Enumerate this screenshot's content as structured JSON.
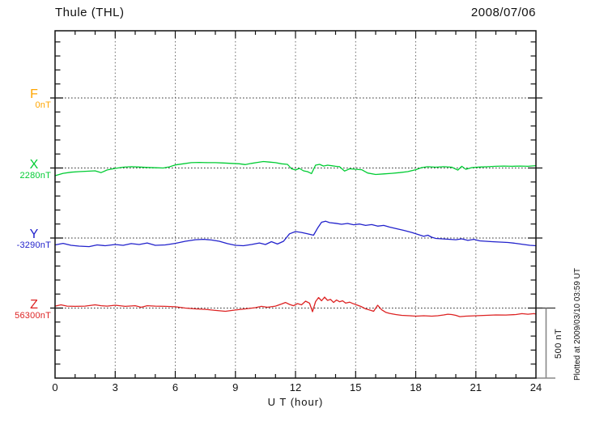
{
  "chart_data": {
    "type": "line",
    "title": "Thule (THL)",
    "date": "2008/07/06",
    "xlabel": "U T (hour)",
    "x_range": [
      0,
      24
    ],
    "x_ticks": [
      0,
      3,
      6,
      9,
      12,
      15,
      18,
      21,
      24
    ],
    "grid": "dotted vertical at 3h intervals, dotted horizontal at each channel baseline",
    "axis_color": "#111111",
    "scale_bar": {
      "label": "500 nT",
      "nT": 500
    },
    "watermark": "Plotted at 2009/03/10 03:59 UT",
    "note": "Magnetogram; each channel plotted as offset in nT from its baseline value; baseline spacing equals 500 nT",
    "series": [
      {
        "name": "F",
        "value_label": "0nT",
        "color": "#FFA500",
        "points": []
      },
      {
        "name": "X",
        "value_label": "2280nT",
        "color": "#00CC33",
        "points": [
          [
            0,
            -55
          ],
          [
            0.4,
            -38
          ],
          [
            0.8,
            -30
          ],
          [
            1.2,
            -26
          ],
          [
            1.6,
            -23
          ],
          [
            2,
            -20
          ],
          [
            2.3,
            -33
          ],
          [
            2.6,
            -14
          ],
          [
            3,
            -3
          ],
          [
            3.4,
            6
          ],
          [
            3.8,
            9
          ],
          [
            4.2,
            7
          ],
          [
            4.6,
            4
          ],
          [
            5,
            2
          ],
          [
            5.4,
            0
          ],
          [
            5.7,
            8
          ],
          [
            6,
            22
          ],
          [
            6.4,
            30
          ],
          [
            6.8,
            38
          ],
          [
            7.2,
            40
          ],
          [
            7.6,
            38
          ],
          [
            8,
            38
          ],
          [
            8.4,
            36
          ],
          [
            8.8,
            33
          ],
          [
            9.2,
            30
          ],
          [
            9.5,
            24
          ],
          [
            9.8,
            33
          ],
          [
            10.1,
            40
          ],
          [
            10.4,
            46
          ],
          [
            10.7,
            42
          ],
          [
            11,
            38
          ],
          [
            11.3,
            30
          ],
          [
            11.6,
            26
          ],
          [
            11.8,
            -6
          ],
          [
            12,
            -14
          ],
          [
            12.2,
            -3
          ],
          [
            12.4,
            -20
          ],
          [
            12.6,
            -26
          ],
          [
            12.8,
            -40
          ],
          [
            13,
            20
          ],
          [
            13.2,
            26
          ],
          [
            13.4,
            14
          ],
          [
            13.6,
            20
          ],
          [
            13.8,
            16
          ],
          [
            14,
            12
          ],
          [
            14.2,
            9
          ],
          [
            14.45,
            -22
          ],
          [
            14.7,
            -6
          ],
          [
            15,
            -9
          ],
          [
            15.3,
            -12
          ],
          [
            15.6,
            -36
          ],
          [
            16,
            -46
          ],
          [
            16.4,
            -42
          ],
          [
            16.8,
            -38
          ],
          [
            17.2,
            -33
          ],
          [
            17.6,
            -26
          ],
          [
            18,
            -12
          ],
          [
            18.3,
            3
          ],
          [
            18.6,
            9
          ],
          [
            19,
            6
          ],
          [
            19.4,
            9
          ],
          [
            19.8,
            6
          ],
          [
            20.1,
            -15
          ],
          [
            20.3,
            12
          ],
          [
            20.5,
            -9
          ],
          [
            20.8,
            3
          ],
          [
            21.2,
            7
          ],
          [
            21.6,
            9
          ],
          [
            22,
            12
          ],
          [
            22.4,
            14
          ],
          [
            22.8,
            12
          ],
          [
            23.2,
            14
          ],
          [
            23.6,
            12
          ],
          [
            24,
            17
          ]
        ]
      },
      {
        "name": "Y",
        "value_label": "-3290nT",
        "color": "#2222CC",
        "points": [
          [
            0,
            -49
          ],
          [
            0.4,
            -38
          ],
          [
            0.8,
            -52
          ],
          [
            1.2,
            -58
          ],
          [
            1.7,
            -61
          ],
          [
            2.1,
            -49
          ],
          [
            2.5,
            -55
          ],
          [
            3,
            -46
          ],
          [
            3.4,
            -52
          ],
          [
            3.8,
            -40
          ],
          [
            4.2,
            -46
          ],
          [
            4.6,
            -35
          ],
          [
            5,
            -52
          ],
          [
            5.5,
            -49
          ],
          [
            6,
            -38
          ],
          [
            6.5,
            -23
          ],
          [
            7,
            -12
          ],
          [
            7.4,
            -9
          ],
          [
            7.8,
            -14
          ],
          [
            8.2,
            -23
          ],
          [
            8.6,
            -40
          ],
          [
            9,
            -52
          ],
          [
            9.4,
            -55
          ],
          [
            9.8,
            -46
          ],
          [
            10.2,
            -35
          ],
          [
            10.5,
            -46
          ],
          [
            10.8,
            -26
          ],
          [
            11.1,
            -43
          ],
          [
            11.4,
            -23
          ],
          [
            11.7,
            30
          ],
          [
            12,
            46
          ],
          [
            12.3,
            40
          ],
          [
            12.6,
            30
          ],
          [
            12.9,
            20
          ],
          [
            13.1,
            70
          ],
          [
            13.3,
            113
          ],
          [
            13.5,
            120
          ],
          [
            13.7,
            110
          ],
          [
            14,
            105
          ],
          [
            14.3,
            98
          ],
          [
            14.6,
            104
          ],
          [
            14.9,
            95
          ],
          [
            15.2,
            100
          ],
          [
            15.5,
            90
          ],
          [
            15.8,
            96
          ],
          [
            16.1,
            85
          ],
          [
            16.4,
            90
          ],
          [
            16.7,
            78
          ],
          [
            17,
            68
          ],
          [
            17.4,
            55
          ],
          [
            17.8,
            40
          ],
          [
            18.1,
            26
          ],
          [
            18.4,
            12
          ],
          [
            18.6,
            20
          ],
          [
            18.8,
            6
          ],
          [
            19,
            -3
          ],
          [
            19.3,
            -6
          ],
          [
            19.7,
            -9
          ],
          [
            20,
            -12
          ],
          [
            20.3,
            -6
          ],
          [
            20.6,
            -17
          ],
          [
            20.9,
            -9
          ],
          [
            21.2,
            -20
          ],
          [
            21.5,
            -23
          ],
          [
            21.8,
            -26
          ],
          [
            22.2,
            -29
          ],
          [
            22.6,
            -32
          ],
          [
            23,
            -38
          ],
          [
            23.4,
            -46
          ],
          [
            23.7,
            -52
          ],
          [
            24,
            -55
          ]
        ]
      },
      {
        "name": "Z",
        "value_label": "56300nT",
        "color": "#DD2222",
        "points": [
          [
            0,
            14
          ],
          [
            0.3,
            23
          ],
          [
            0.6,
            14
          ],
          [
            1,
            12
          ],
          [
            1.5,
            14
          ],
          [
            2,
            23
          ],
          [
            2.3,
            17
          ],
          [
            2.6,
            14
          ],
          [
            3,
            20
          ],
          [
            3.5,
            12
          ],
          [
            4,
            17
          ],
          [
            4.3,
            6
          ],
          [
            4.6,
            17
          ],
          [
            5,
            14
          ],
          [
            5.5,
            12
          ],
          [
            6,
            9
          ],
          [
            6.5,
            0
          ],
          [
            7,
            -6
          ],
          [
            7.5,
            -9
          ],
          [
            8,
            -17
          ],
          [
            8.5,
            -23
          ],
          [
            9,
            -14
          ],
          [
            9.5,
            -6
          ],
          [
            10,
            3
          ],
          [
            10.3,
            12
          ],
          [
            10.6,
            6
          ],
          [
            11,
            14
          ],
          [
            11.3,
            29
          ],
          [
            11.5,
            40
          ],
          [
            11.7,
            26
          ],
          [
            11.9,
            17
          ],
          [
            12.1,
            32
          ],
          [
            12.3,
            23
          ],
          [
            12.5,
            49
          ],
          [
            12.7,
            35
          ],
          [
            12.85,
            -26
          ],
          [
            13,
            46
          ],
          [
            13.15,
            75
          ],
          [
            13.3,
            52
          ],
          [
            13.45,
            78
          ],
          [
            13.6,
            55
          ],
          [
            13.75,
            62
          ],
          [
            13.9,
            40
          ],
          [
            14.05,
            58
          ],
          [
            14.2,
            45
          ],
          [
            14.35,
            52
          ],
          [
            14.5,
            35
          ],
          [
            14.7,
            42
          ],
          [
            14.9,
            30
          ],
          [
            15.1,
            20
          ],
          [
            15.3,
            9
          ],
          [
            15.5,
            -6
          ],
          [
            15.7,
            -14
          ],
          [
            15.9,
            -23
          ],
          [
            16.1,
            20
          ],
          [
            16.3,
            -12
          ],
          [
            16.5,
            -30
          ],
          [
            16.7,
            -38
          ],
          [
            17,
            -46
          ],
          [
            17.3,
            -52
          ],
          [
            17.7,
            -55
          ],
          [
            18,
            -58
          ],
          [
            18.4,
            -55
          ],
          [
            18.8,
            -58
          ],
          [
            19.1,
            -55
          ],
          [
            19.4,
            -49
          ],
          [
            19.6,
            -44
          ],
          [
            19.8,
            -46
          ],
          [
            20,
            -52
          ],
          [
            20.2,
            -61
          ],
          [
            20.5,
            -58
          ],
          [
            21,
            -55
          ],
          [
            21.5,
            -52
          ],
          [
            22,
            -49
          ],
          [
            22.5,
            -50
          ],
          [
            23,
            -46
          ],
          [
            23.3,
            -40
          ],
          [
            23.6,
            -44
          ],
          [
            23.9,
            -40
          ],
          [
            24,
            -43
          ]
        ]
      }
    ]
  }
}
